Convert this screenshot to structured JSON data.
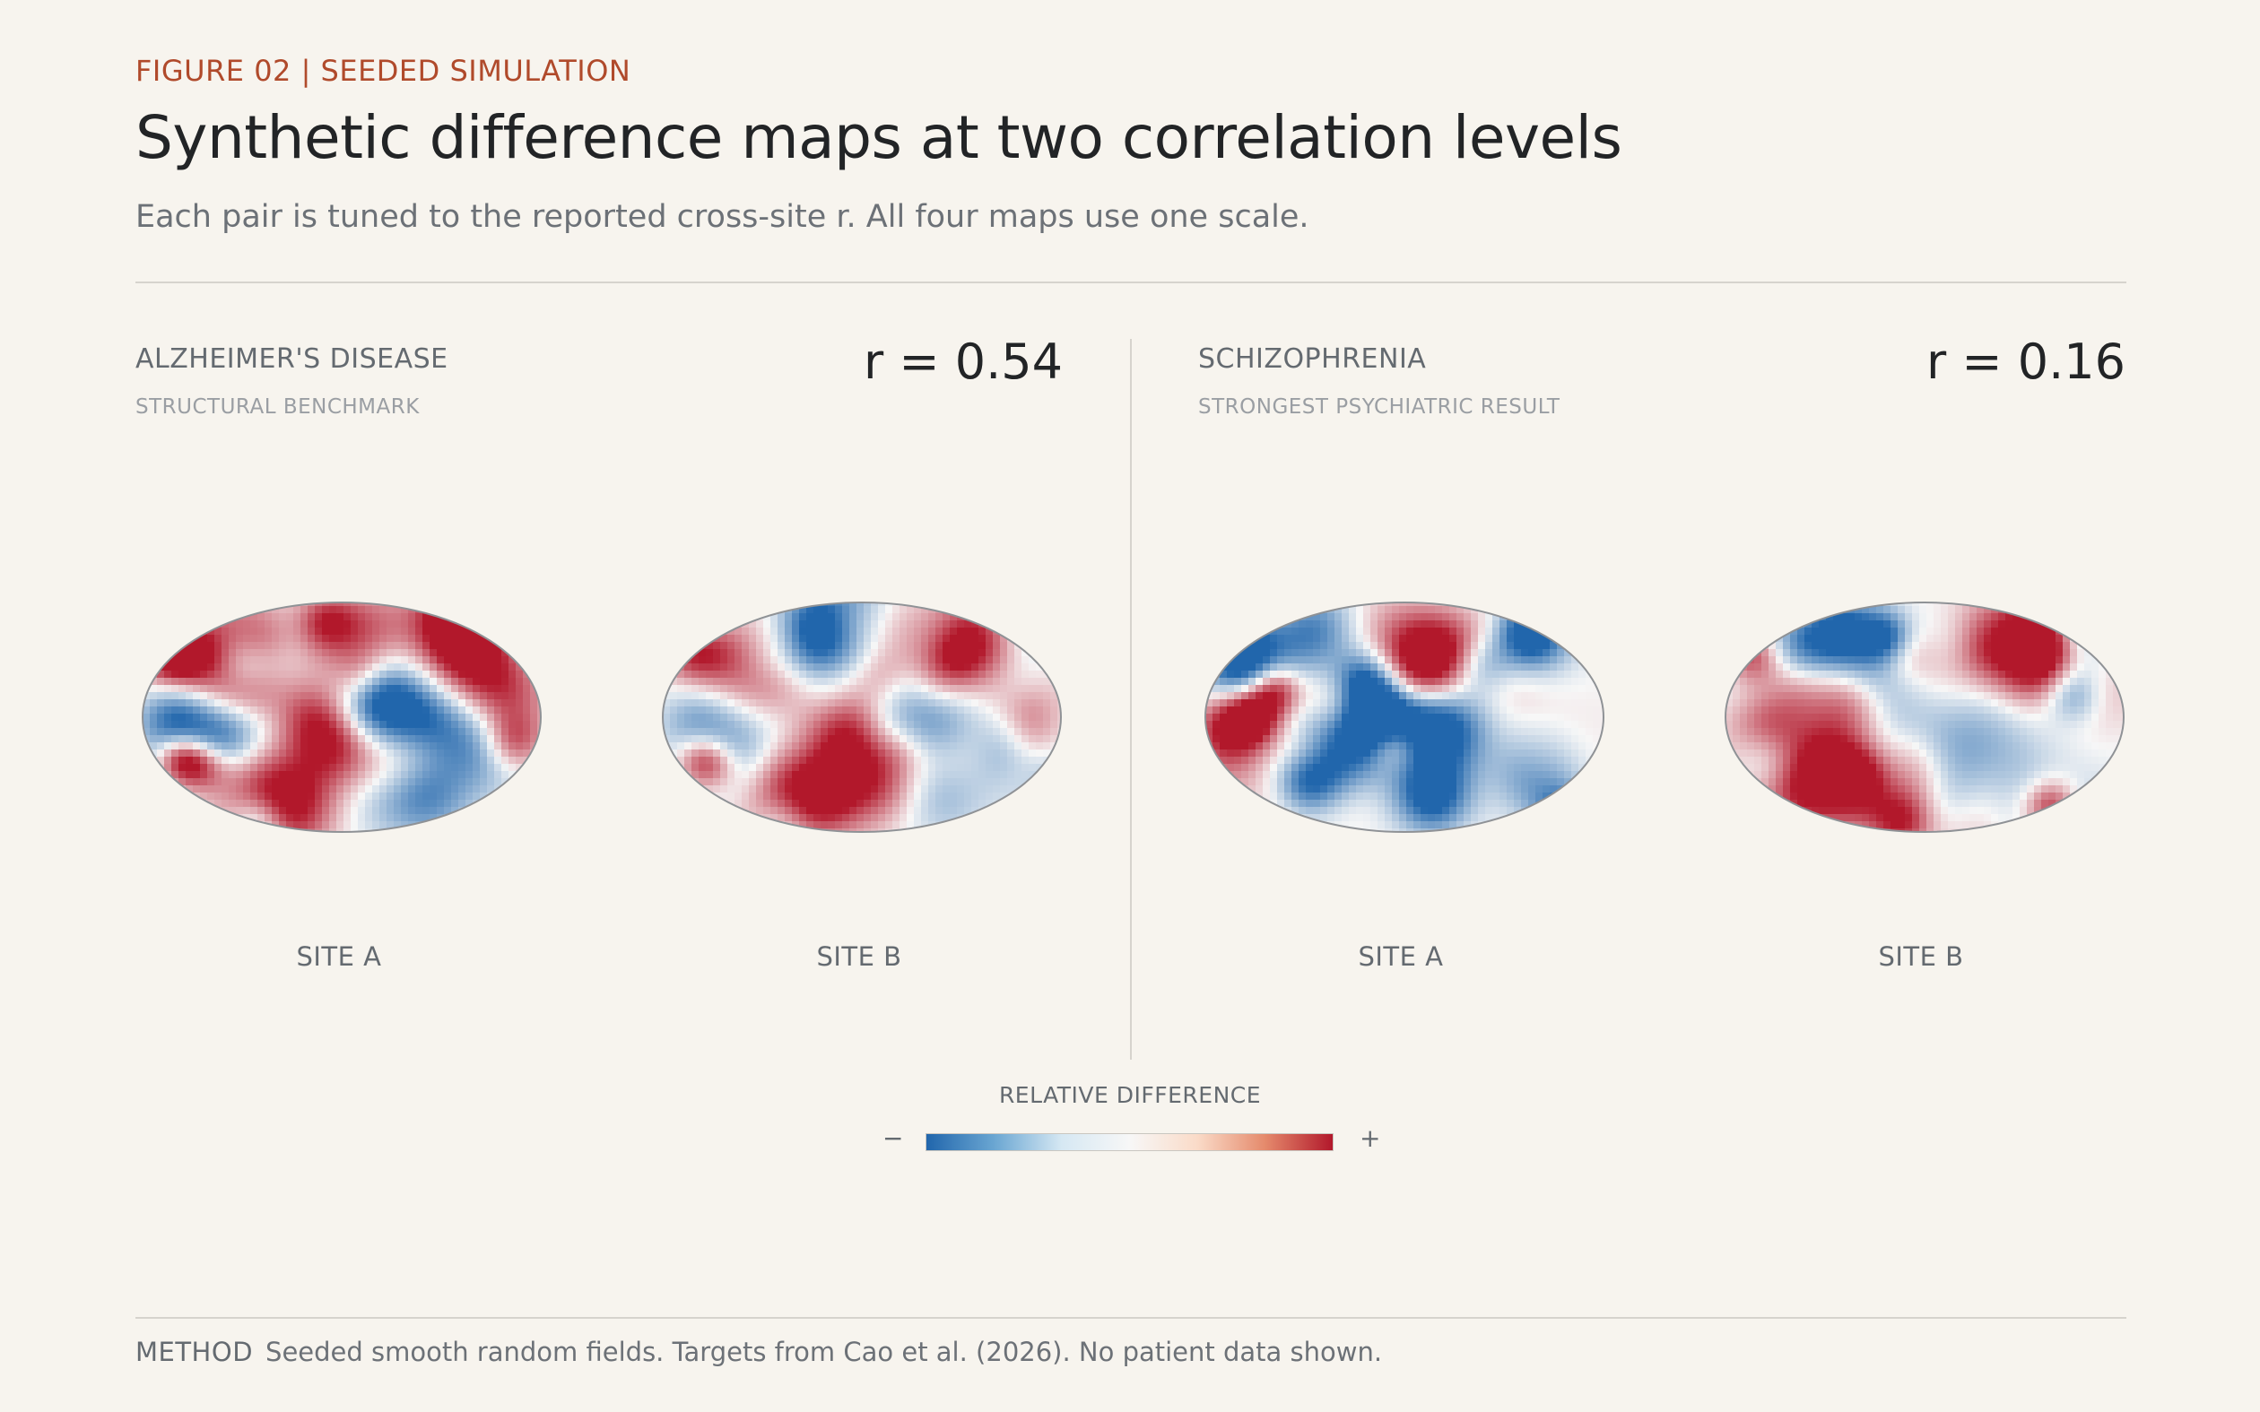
{
  "header": {
    "kicker": "FIGURE 02 | SEEDED SIMULATION",
    "title": "Synthetic difference maps at two correlation levels",
    "subtitle": "Each pair is tuned to the reported cross-site r. All four maps use one scale."
  },
  "panels": [
    {
      "title": "ALZHEIMER'S DISEASE",
      "subtitle": "STRUCTURAL BENCHMARK",
      "r_label": "r = 0.54",
      "r": 0.54,
      "site_a": "SITE A",
      "site_b": "SITE B"
    },
    {
      "title": "SCHIZOPHRENIA",
      "subtitle": "STRONGEST PSYCHIATRIC RESULT",
      "r_label": "r = 0.16",
      "r": 0.16,
      "site_a": "SITE A",
      "site_b": "SITE B"
    }
  ],
  "legend": {
    "title": "RELATIVE DIFFERENCE",
    "minus": "−",
    "plus": "+",
    "color_low": "#2166ac",
    "color_mid": "#f7f7f7",
    "color_high": "#b2182b"
  },
  "footer": {
    "method_label": "METHOD",
    "method_text": "Seeded smooth random fields. Targets from Cao et al. (2026). No patient data shown."
  }
}
